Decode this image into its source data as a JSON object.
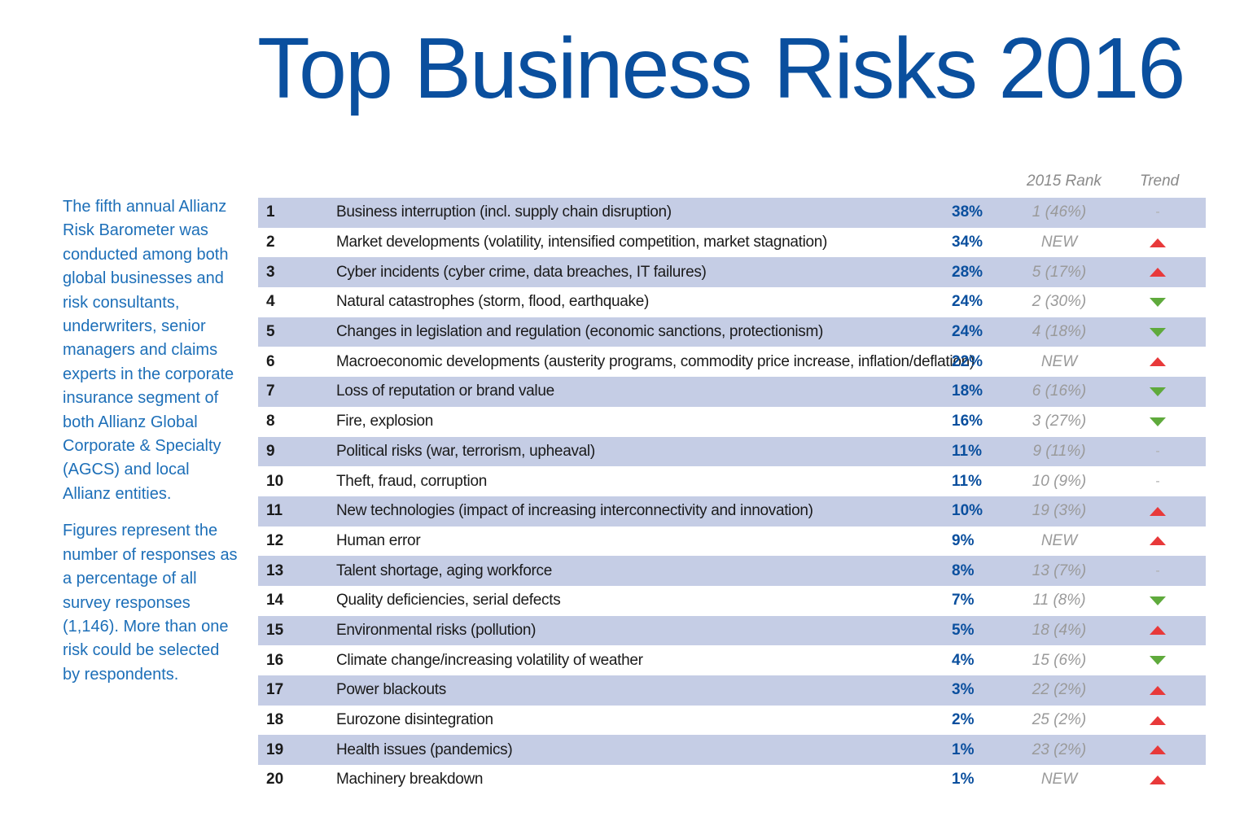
{
  "title": "Top Business Risks 2016",
  "sidebar": {
    "paragraph1": "The fifth annual Allianz Risk Barometer was conducted among both global businesses and risk consultants, underwriters, senior managers and claims experts in the corporate insurance segment of both Allianz Global Corporate & Specialty (AGCS) and local Allianz entities.",
    "paragraph2": "Figures represent the number of responses as a percentage of all survey responses (1,146). More than one risk could be selected by respondents."
  },
  "table": {
    "header_rank": "2015 Rank",
    "header_trend": "Trend",
    "colors": {
      "shaded_row": "#c5cde5",
      "percent": "#0a4f9e",
      "trend_up": "#e8393a",
      "trend_down": "#5faa3c"
    },
    "rows": [
      {
        "rank": "1",
        "risk": "Business interruption (incl. supply chain disruption)",
        "percent": "38%",
        "rank_2015": "1 (46%)",
        "trend": "same",
        "trend_icon": "dash-icon"
      },
      {
        "rank": "2",
        "risk": "Market developments (volatility, intensified competition, market stagnation)",
        "percent": "34%",
        "rank_2015": "NEW",
        "trend": "up",
        "trend_icon": "arrow-up-icon"
      },
      {
        "rank": "3",
        "risk": "Cyber incidents (cyber crime, data breaches, IT failures)",
        "percent": "28%",
        "rank_2015": "5 (17%)",
        "trend": "up",
        "trend_icon": "arrow-up-icon"
      },
      {
        "rank": "4",
        "risk": "Natural catastrophes (storm, flood, earthquake)",
        "percent": "24%",
        "rank_2015": "2 (30%)",
        "trend": "down",
        "trend_icon": "arrow-down-icon"
      },
      {
        "rank": "5",
        "risk": "Changes in legislation and regulation (economic sanctions, protectionism)",
        "percent": "24%",
        "rank_2015": "4 (18%)",
        "trend": "down",
        "trend_icon": "arrow-down-icon"
      },
      {
        "rank": "6",
        "risk": "Macroeconomic developments (austerity programs, commodity price increase, inflation/deflation)",
        "percent": "22%",
        "rank_2015": "NEW",
        "trend": "up",
        "trend_icon": "arrow-up-icon"
      },
      {
        "rank": "7",
        "risk": "Loss of reputation or brand value",
        "percent": "18%",
        "rank_2015": "6 (16%)",
        "trend": "down",
        "trend_icon": "arrow-down-icon"
      },
      {
        "rank": "8",
        "risk": "Fire, explosion",
        "percent": "16%",
        "rank_2015": "3 (27%)",
        "trend": "down",
        "trend_icon": "arrow-down-icon"
      },
      {
        "rank": "9",
        "risk": "Political risks (war, terrorism, upheaval)",
        "percent": "11%",
        "rank_2015": "9 (11%)",
        "trend": "same",
        "trend_icon": "dash-icon"
      },
      {
        "rank": "10",
        "risk": "Theft, fraud, corruption",
        "percent": "11%",
        "rank_2015": "10 (9%)",
        "trend": "same",
        "trend_icon": "dash-icon"
      },
      {
        "rank": "11",
        "risk": "New technologies (impact of increasing interconnectivity and innovation)",
        "percent": "10%",
        "rank_2015": "19 (3%)",
        "trend": "up",
        "trend_icon": "arrow-up-icon"
      },
      {
        "rank": "12",
        "risk": "Human error",
        "percent": "9%",
        "rank_2015": "NEW",
        "trend": "up",
        "trend_icon": "arrow-up-icon"
      },
      {
        "rank": "13",
        "risk": "Talent shortage, aging workforce",
        "percent": "8%",
        "rank_2015": "13 (7%)",
        "trend": "same",
        "trend_icon": "dash-icon"
      },
      {
        "rank": "14",
        "risk": "Quality deficiencies, serial defects",
        "percent": "7%",
        "rank_2015": "11 (8%)",
        "trend": "down",
        "trend_icon": "arrow-down-icon"
      },
      {
        "rank": "15",
        "risk": "Environmental risks (pollution)",
        "percent": "5%",
        "rank_2015": "18 (4%)",
        "trend": "up",
        "trend_icon": "arrow-up-icon"
      },
      {
        "rank": "16",
        "risk": "Climate change/increasing volatility of weather",
        "percent": "4%",
        "rank_2015": "15 (6%)",
        "trend": "down",
        "trend_icon": "arrow-down-icon"
      },
      {
        "rank": "17",
        "risk": "Power blackouts",
        "percent": "3%",
        "rank_2015": "22 (2%)",
        "trend": "up",
        "trend_icon": "arrow-up-icon"
      },
      {
        "rank": "18",
        "risk": "Eurozone disintegration",
        "percent": "2%",
        "rank_2015": "25 (2%)",
        "trend": "up",
        "trend_icon": "arrow-up-icon"
      },
      {
        "rank": "19",
        "risk": "Health issues (pandemics)",
        "percent": "1%",
        "rank_2015": "23 (2%)",
        "trend": "up",
        "trend_icon": "arrow-up-icon"
      },
      {
        "rank": "20",
        "risk": "Machinery breakdown",
        "percent": "1%",
        "rank_2015": "NEW",
        "trend": "up",
        "trend_icon": "arrow-up-icon"
      }
    ]
  }
}
